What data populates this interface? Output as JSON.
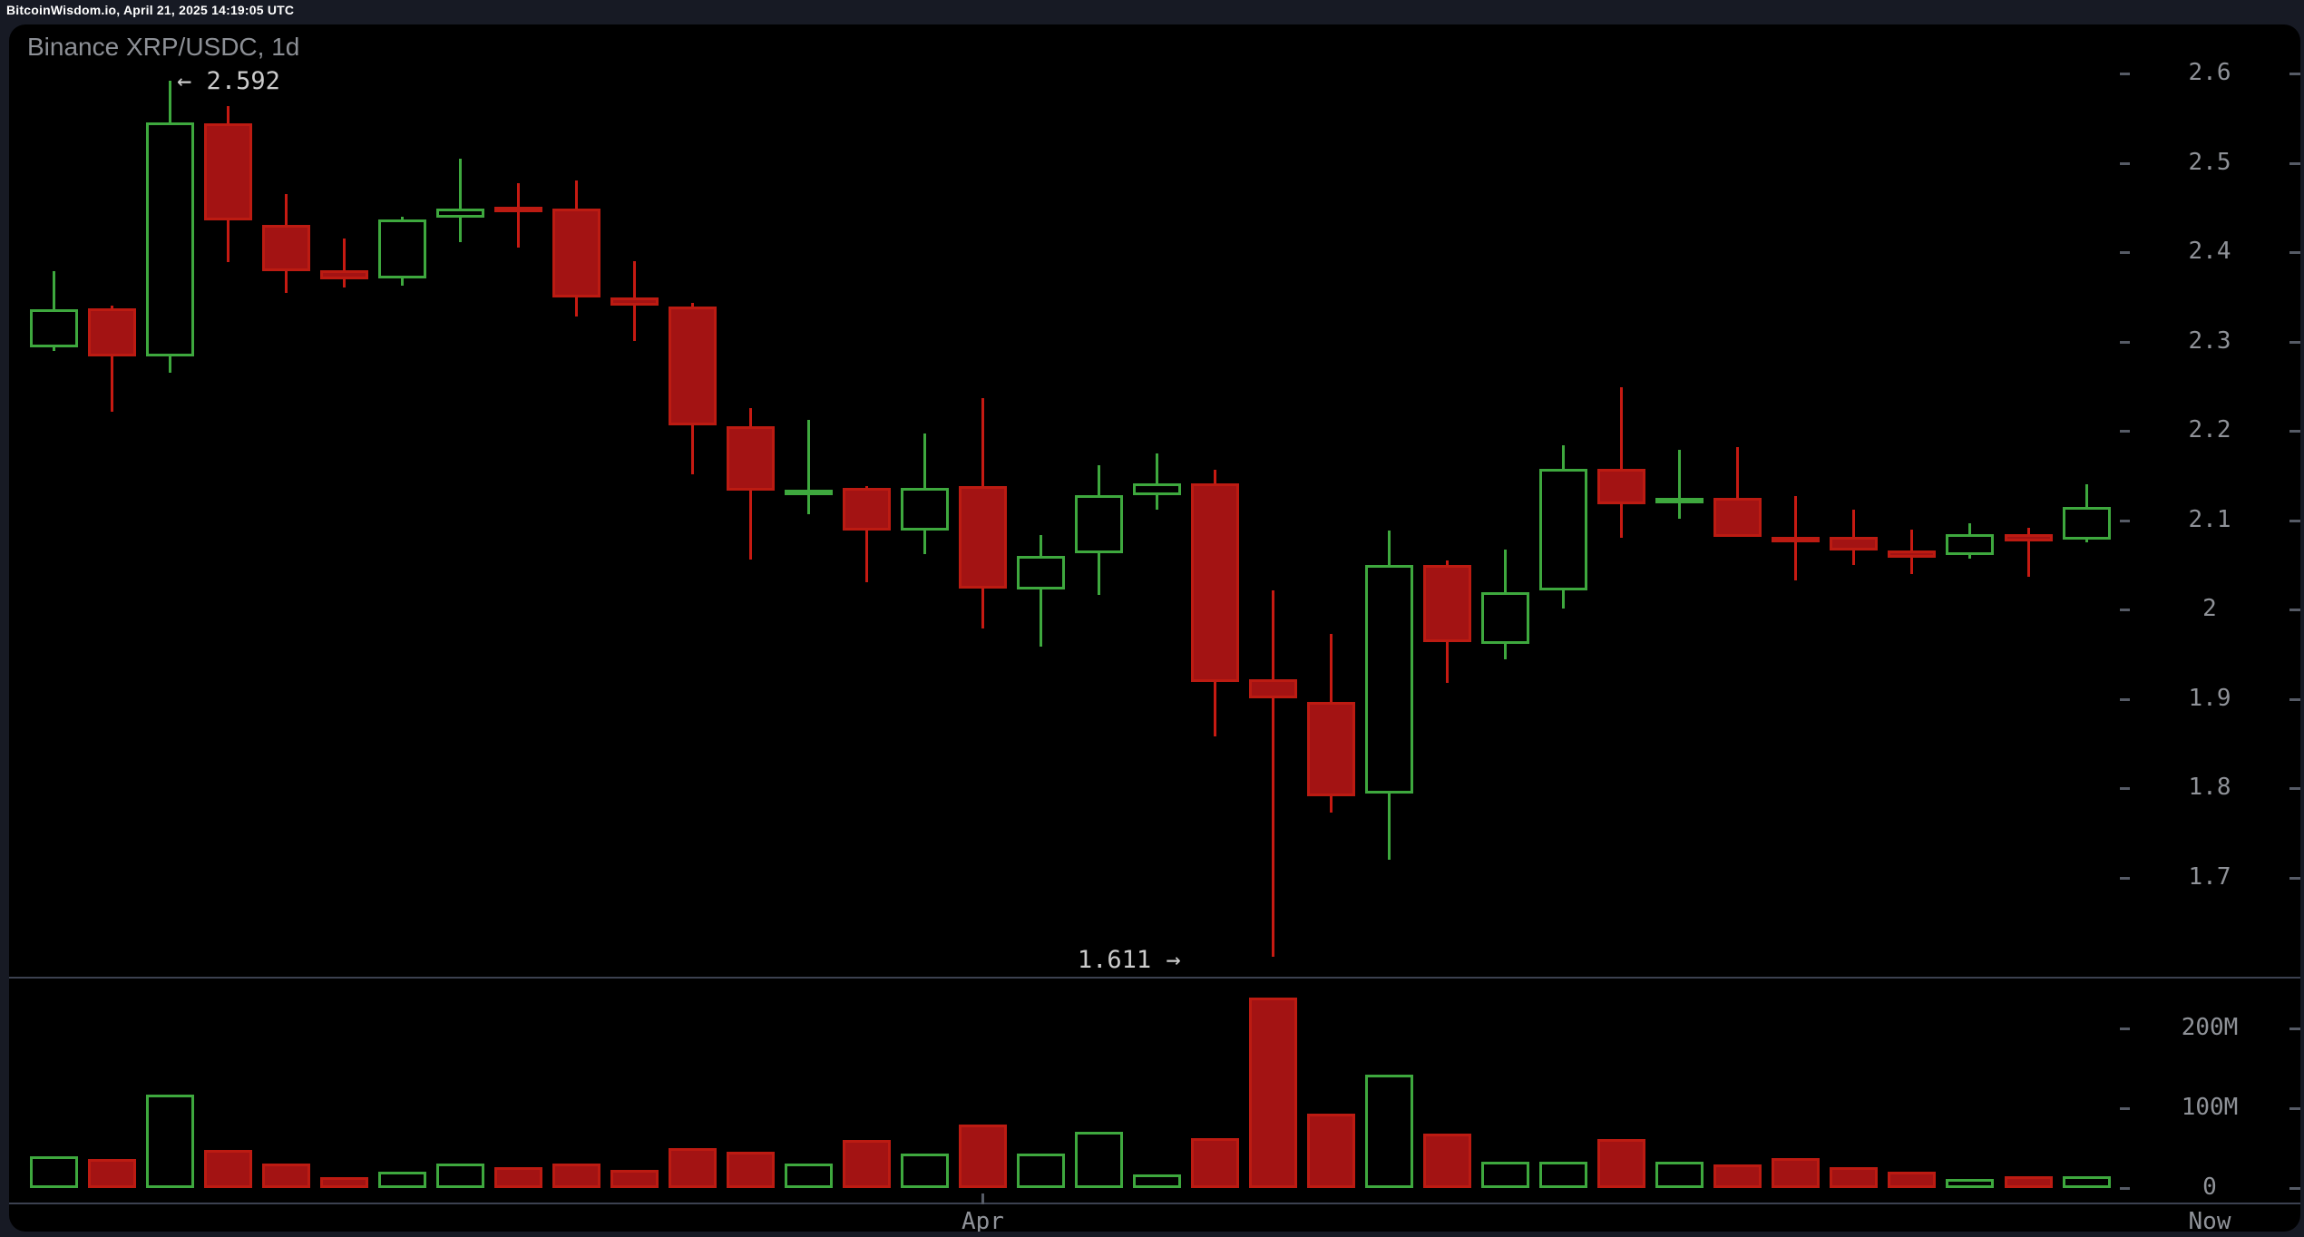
{
  "top_bar": {
    "text": "BitcoinWisdom.io, April 21, 2025 14:19:05 UTC"
  },
  "chart": {
    "title": "Binance XRP/USDC, 1d",
    "annotation_high": "← 2.592",
    "annotation_low": "1.611 →"
  },
  "axes": {
    "x_start_label": "Apr",
    "x_end_label": "Now",
    "volume_rows": [
      {
        "label": "200M",
        "value": 200
      },
      {
        "label": "100M",
        "value": 100
      },
      {
        "label": "0",
        "value": 0
      }
    ]
  },
  "colors": {
    "background": "#000000",
    "frame": "#171a24",
    "up_stroke": "#3ea83e",
    "down_fill": "#a31313",
    "down_stroke": "#bc1b12",
    "down_wick": "#c61a12",
    "axis_text": "#8f9298",
    "annotation_text": "#cbcbcb",
    "grid_line": "#3c4150",
    "tick_mark": "#565b66",
    "title_text": "#8d9096",
    "topbar_text": "#ffffff"
  },
  "chart_data": {
    "type": "candlestick",
    "title": "Binance XRP/USDC, 1d",
    "interval": "1d",
    "price_axis_ticks": [
      2.6,
      2.5,
      2.4,
      2.3,
      2.2,
      2.1,
      2,
      1.9,
      1.8,
      1.7
    ],
    "volume_axis_ticks": [
      "200M",
      "100M",
      "0"
    ],
    "high_annotation": {
      "value": 2.592,
      "label": "← 2.592"
    },
    "low_annotation": {
      "value": 1.611,
      "label": "1.611 →"
    },
    "x_axis": {
      "month_marker": {
        "label": "Apr",
        "candle_index": 16
      },
      "right_edge_label": "Now"
    },
    "candles": [
      {
        "o": 2.293,
        "h": 2.379,
        "l": 2.289,
        "c": 2.336,
        "vol_m": 40
      },
      {
        "o": 2.337,
        "h": 2.34,
        "l": 2.221,
        "c": 2.283,
        "vol_m": 36
      },
      {
        "o": 2.283,
        "h": 2.592,
        "l": 2.265,
        "c": 2.545,
        "vol_m": 117
      },
      {
        "o": 2.544,
        "h": 2.563,
        "l": 2.389,
        "c": 2.436,
        "vol_m": 48
      },
      {
        "o": 2.43,
        "h": 2.465,
        "l": 2.354,
        "c": 2.379,
        "vol_m": 31
      },
      {
        "o": 2.38,
        "h": 2.415,
        "l": 2.36,
        "c": 2.37,
        "vol_m": 14
      },
      {
        "o": 2.371,
        "h": 2.44,
        "l": 2.362,
        "c": 2.437,
        "vol_m": 20
      },
      {
        "o": 2.439,
        "h": 2.505,
        "l": 2.411,
        "c": 2.449,
        "vol_m": 31
      },
      {
        "o": 2.451,
        "h": 2.477,
        "l": 2.405,
        "c": 2.446,
        "vol_m": 26
      },
      {
        "o": 2.449,
        "h": 2.48,
        "l": 2.328,
        "c": 2.349,
        "vol_m": 31
      },
      {
        "o": 2.349,
        "h": 2.39,
        "l": 2.3,
        "c": 2.34,
        "vol_m": 23
      },
      {
        "o": 2.339,
        "h": 2.343,
        "l": 2.151,
        "c": 2.206,
        "vol_m": 50
      },
      {
        "o": 2.205,
        "h": 2.225,
        "l": 2.056,
        "c": 2.133,
        "vol_m": 45
      },
      {
        "o": 2.131,
        "h": 2.212,
        "l": 2.107,
        "c": 2.134,
        "vol_m": 31
      },
      {
        "o": 2.136,
        "h": 2.138,
        "l": 2.03,
        "c": 2.088,
        "vol_m": 60
      },
      {
        "o": 2.088,
        "h": 2.197,
        "l": 2.062,
        "c": 2.136,
        "vol_m": 43
      },
      {
        "o": 2.138,
        "h": 2.237,
        "l": 1.979,
        "c": 2.023,
        "vol_m": 80
      },
      {
        "o": 2.022,
        "h": 2.083,
        "l": 1.958,
        "c": 2.06,
        "vol_m": 43
      },
      {
        "o": 2.063,
        "h": 2.161,
        "l": 2.016,
        "c": 2.128,
        "vol_m": 70
      },
      {
        "o": 2.128,
        "h": 2.175,
        "l": 2.112,
        "c": 2.141,
        "vol_m": 17
      },
      {
        "o": 2.141,
        "h": 2.156,
        "l": 1.858,
        "c": 1.919,
        "vol_m": 63
      },
      {
        "o": 1.922,
        "h": 2.021,
        "l": 1.611,
        "c": 1.901,
        "vol_m": 239
      },
      {
        "o": 1.896,
        "h": 1.973,
        "l": 1.773,
        "c": 1.791,
        "vol_m": 93
      },
      {
        "o": 1.794,
        "h": 2.088,
        "l": 1.72,
        "c": 2.05,
        "vol_m": 142
      },
      {
        "o": 2.05,
        "h": 2.055,
        "l": 1.918,
        "c": 1.963,
        "vol_m": 68
      },
      {
        "o": 1.961,
        "h": 2.067,
        "l": 1.944,
        "c": 2.019,
        "vol_m": 33
      },
      {
        "o": 2.021,
        "h": 2.184,
        "l": 2.001,
        "c": 2.157,
        "vol_m": 33
      },
      {
        "o": 2.157,
        "h": 2.249,
        "l": 2.08,
        "c": 2.118,
        "vol_m": 61
      },
      {
        "o": 2.119,
        "h": 2.179,
        "l": 2.102,
        "c": 2.125,
        "vol_m": 33
      },
      {
        "o": 2.125,
        "h": 2.182,
        "l": 2.081,
        "c": 2.081,
        "vol_m": 30
      },
      {
        "o": 2.081,
        "h": 2.127,
        "l": 2.032,
        "c": 2.078,
        "vol_m": 38
      },
      {
        "o": 2.081,
        "h": 2.112,
        "l": 2.05,
        "c": 2.066,
        "vol_m": 26
      },
      {
        "o": 2.066,
        "h": 2.089,
        "l": 2.04,
        "c": 2.058,
        "vol_m": 20
      },
      {
        "o": 2.061,
        "h": 2.096,
        "l": 2.057,
        "c": 2.084,
        "vol_m": 11
      },
      {
        "o": 2.084,
        "h": 2.091,
        "l": 2.037,
        "c": 2.076,
        "vol_m": 15
      },
      {
        "o": 2.078,
        "h": 2.14,
        "l": 2.075,
        "c": 2.115,
        "vol_m": 15
      }
    ]
  }
}
